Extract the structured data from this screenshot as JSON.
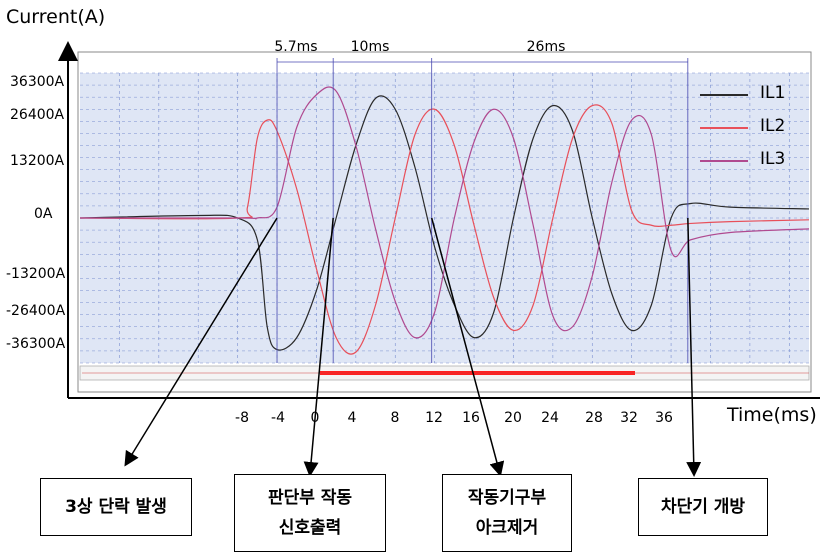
{
  "chart_data": {
    "type": "line",
    "ylabel": "Current(A)",
    "xlabel": "Time(ms)",
    "y_ticks": [
      "36300A",
      "26400A",
      "13200A",
      "0A",
      "-13200A",
      "-26400A",
      "-36300A"
    ],
    "y_tick_values": [
      36300,
      26400,
      13200,
      0,
      -13200,
      -26400,
      -36300
    ],
    "x_ticks": [
      "-8",
      "-4",
      "0",
      "4",
      "8",
      "12",
      "16",
      "20",
      "24",
      "28",
      "32",
      "36"
    ],
    "x_tick_values": [
      -8,
      -4,
      0,
      4,
      8,
      12,
      16,
      20,
      24,
      28,
      32,
      36
    ],
    "xlim": [
      -24,
      50
    ],
    "ylim": [
      -40000,
      40000
    ],
    "grid": true,
    "legend_position": "top-right",
    "series": [
      {
        "name": "IL1",
        "color": "#2a2a2a",
        "x": [
          -24,
          -12,
          -8,
          -6,
          -5,
          -4,
          -2,
          0,
          2,
          4,
          6,
          8,
          10,
          12,
          14,
          16,
          18,
          20,
          22,
          24,
          26,
          28,
          30,
          32,
          34,
          36,
          38,
          42,
          50
        ],
        "y": [
          0,
          700,
          0,
          -6000,
          -30000,
          -36300,
          -33000,
          -20000,
          0,
          20000,
          33000,
          30000,
          14000,
          -8000,
          -24000,
          -33000,
          -26000,
          0,
          22000,
          31000,
          24000,
          0,
          -21000,
          -31000,
          -24000,
          0,
          4000,
          3000,
          2500
        ]
      },
      {
        "name": "IL2",
        "color": "#e8505a",
        "x": [
          -24,
          -8,
          -7,
          -6,
          -5,
          -4,
          -2,
          0,
          2,
          4,
          6,
          8,
          10,
          12,
          14,
          16,
          18,
          20,
          22,
          24,
          26,
          28,
          30,
          32,
          34,
          36,
          38,
          42,
          50
        ],
        "y": [
          0,
          0,
          3000,
          22000,
          27000,
          24000,
          8000,
          -14000,
          -33000,
          -37000,
          -24000,
          0,
          23000,
          30000,
          20000,
          -2000,
          -22000,
          -31000,
          -24000,
          0,
          22000,
          31000,
          26000,
          2000,
          -2000,
          -2000,
          -1500,
          -1000,
          -500
        ]
      },
      {
        "name": "IL3",
        "color": "#b04a90",
        "x": [
          -24,
          -8,
          -6,
          -4,
          -2,
          0,
          2,
          4,
          6,
          8,
          10,
          12,
          14,
          16,
          18,
          20,
          22,
          24,
          26,
          28,
          30,
          32,
          34,
          36,
          38,
          42,
          50
        ],
        "y": [
          0,
          0,
          0,
          3000,
          25000,
          34000,
          35000,
          20000,
          -3000,
          -23000,
          -33000,
          -26000,
          0,
          21000,
          30000,
          22000,
          -2000,
          -27000,
          -30000,
          -16000,
          10000,
          27000,
          23000,
          -9000,
          -6000,
          -4000,
          -3000
        ]
      }
    ],
    "interval_labels": [
      "5.7ms",
      "10ms",
      "26ms"
    ],
    "interval_markers_ms": [
      -4,
      1.7,
      11.7,
      37.7
    ],
    "annotations": [
      "3상 단락 발생",
      "판단부 작동\n신호출력",
      "작동기구부\n아크제거",
      "차단기 개방"
    ]
  }
}
